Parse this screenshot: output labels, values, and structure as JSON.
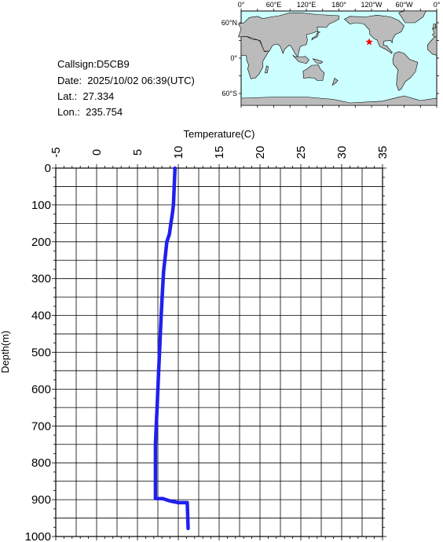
{
  "info": {
    "callsign": "Callsign:D5CB9",
    "date": "Date:  2025/10/02 06:39(UTC)",
    "lat": "Lat.:  27.334",
    "lon": "Lon.:  235.754"
  },
  "map": {
    "top_labels": [
      "0°",
      "60°E",
      "120°E",
      "180°",
      "120°W",
      "60°W",
      "0°"
    ],
    "left_labels": [
      "60°N",
      "0°",
      "60°S"
    ],
    "ocean_color": "#ccffff",
    "land_color": "#bbbbbb",
    "marker_color": "#ff0000",
    "marker": {
      "lat": 27.334,
      "lon": 235.754
    },
    "marker_icon": "star-icon"
  },
  "chart_data": {
    "type": "line",
    "xlabel": "Temperature(C)",
    "ylabel": "Depth(m)",
    "xlim": [
      -5,
      35
    ],
    "ylim": [
      1000,
      0
    ],
    "x_ticks": [
      "-5",
      "0",
      "5",
      "10",
      "15",
      "20",
      "25",
      "30",
      "35"
    ],
    "y_ticks": [
      "0",
      "100",
      "200",
      "300",
      "400",
      "500",
      "600",
      "700",
      "800",
      "900",
      "1000"
    ],
    "grid": true,
    "line_color": "#2020ee",
    "series": [
      {
        "temperature": [
          9.6,
          9.5,
          9.4,
          9.3,
          9.1,
          8.9,
          8.6,
          8.4,
          8.2,
          8.1,
          8.0,
          7.9,
          7.8,
          7.7,
          7.6,
          7.5,
          7.4,
          7.3,
          7.2,
          7.2,
          7.2,
          8.1,
          8.9,
          10.0,
          11.1,
          11.2
        ],
        "depth": [
          0,
          50,
          100,
          120,
          150,
          180,
          200,
          240,
          280,
          320,
          360,
          400,
          450,
          500,
          550,
          600,
          650,
          700,
          750,
          800,
          897,
          897,
          903,
          908,
          908,
          978
        ]
      }
    ]
  }
}
